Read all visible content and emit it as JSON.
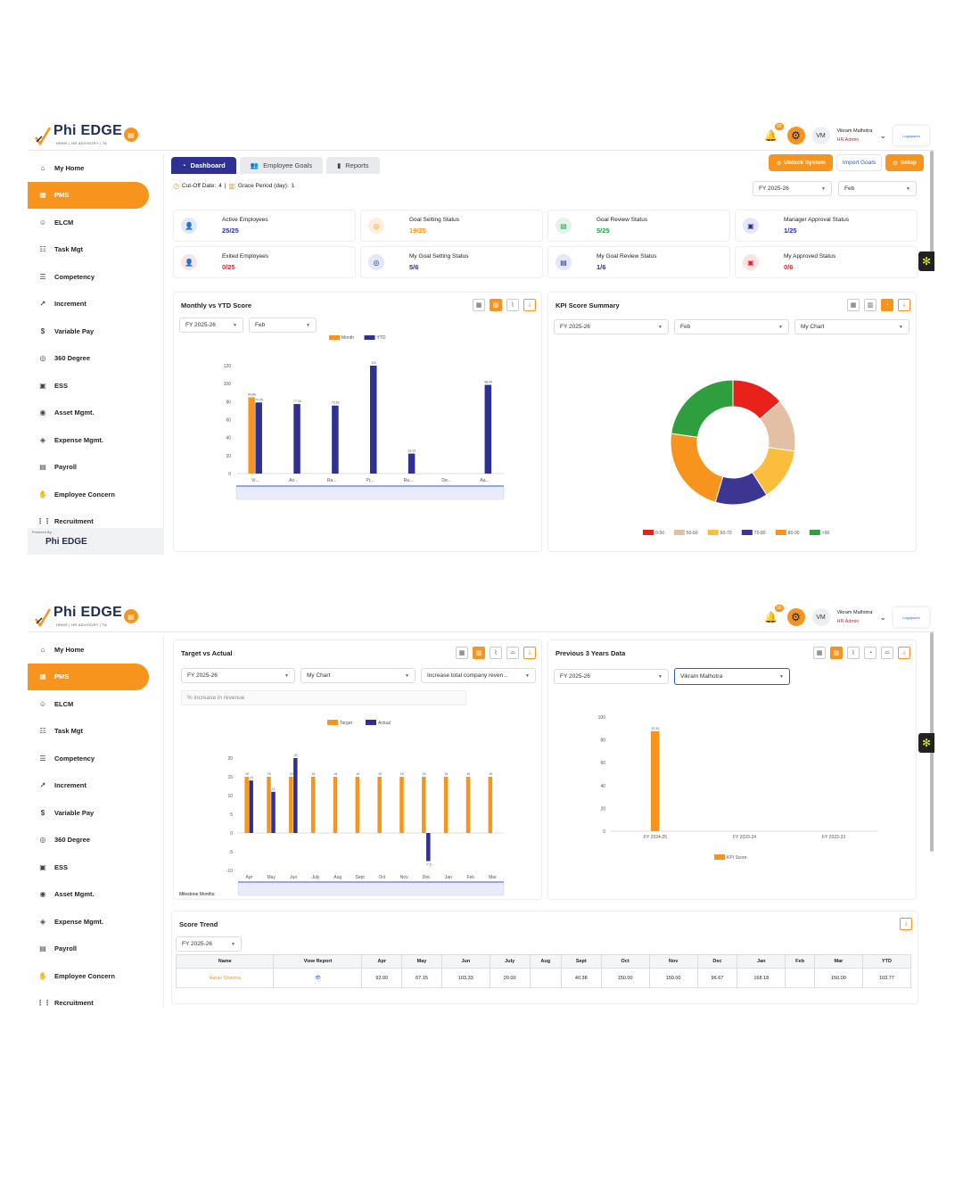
{
  "app": {
    "brand": "Phi EDGE",
    "brand_sub": "HRMS | HR ADVISORY | TA",
    "notif_count": "99",
    "user_initials": "VM",
    "user_name": "Vikram Malhotra",
    "user_role": "HR Admin",
    "partner_logo": "Logoipsum",
    "powered_by": "Powered By:"
  },
  "sidebar": {
    "items": [
      {
        "label": "My Home",
        "icon": "home-icon"
      },
      {
        "label": "PMS",
        "icon": "pms-icon"
      },
      {
        "label": "ELCM",
        "icon": "users-icon"
      },
      {
        "label": "Task Mgt",
        "icon": "task-icon"
      },
      {
        "label": "Competency",
        "icon": "list-icon"
      },
      {
        "label": "Increment",
        "icon": "trend-icon"
      },
      {
        "label": "Variable Pay",
        "icon": "dollar-icon"
      },
      {
        "label": "360 Degree",
        "icon": "360-icon"
      },
      {
        "label": "ESS",
        "icon": "clipboard-icon"
      },
      {
        "label": "Asset Mgmt.",
        "icon": "asset-icon"
      },
      {
        "label": "Expense Mgmt.",
        "icon": "expense-icon"
      },
      {
        "label": "Payroll",
        "icon": "payroll-icon"
      },
      {
        "label": "Employee Concern",
        "icon": "hand-icon"
      },
      {
        "label": "Recruitment",
        "icon": "grid-icon"
      }
    ]
  },
  "tabs": [
    "Dashboard",
    "Employee Goals",
    "Reports"
  ],
  "actions": {
    "unlock": "Unlock System",
    "import": "Import Goals",
    "setup": "Setup"
  },
  "cutoff": {
    "label": "Cut-Off Date:",
    "value": "4",
    "grace_label": "Grace Period (day):",
    "grace_value": "1"
  },
  "filters": {
    "fy": "FY 2025-26",
    "month": "Feb",
    "chart": "My Chart"
  },
  "stats": [
    {
      "label": "Active Employees",
      "value": "25/25",
      "color": "#2e3192",
      "bg": "#e3e7f7"
    },
    {
      "label": "Goal Setting Status",
      "value": "19/25",
      "color": "#f7941d",
      "bg": "#fdeedd"
    },
    {
      "label": "Goal Review Status",
      "value": "5/25",
      "color": "#2e9e4f",
      "bg": "#e2f3e7"
    },
    {
      "label": "Manager Approval Status",
      "value": "1/25",
      "color": "#2e3192",
      "bg": "#e3e7f7"
    },
    {
      "label": "Exited Employees",
      "value": "0/25",
      "color": "#e0262b",
      "bg": "#fbe3e3"
    },
    {
      "label": "My Goal Setting Status",
      "value": "5/6",
      "color": "#2e3192",
      "bg": "#e3e7f7"
    },
    {
      "label": "My Goal Review Status",
      "value": "1/6",
      "color": "#2e3192",
      "bg": "#e3e7f7"
    },
    {
      "label": "My Approved Status",
      "value": "0/6",
      "color": "#e0262b",
      "bg": "#fbe3e3"
    }
  ],
  "panels": {
    "monthly": "Monthly vs YTD Score",
    "kpi": "KPI Score Summary",
    "target": "Target vs Actual",
    "prev": "Previous 3 Years Data",
    "trend": "Score Trend",
    "target_goal_select": "Increase total company reven...",
    "target_input": "% increase in revenue",
    "milestone": "Milestone Months:",
    "prev_person": "Vikram Malhotra"
  },
  "chart_data": [
    {
      "type": "bar",
      "title": "Monthly vs YTD Score",
      "categories": [
        "Vi...",
        "An...",
        "Ra...",
        "Pr...",
        "Ra...",
        "De...",
        "Aa..."
      ],
      "series": [
        {
          "name": "Month",
          "values": [
            84.86,
            0,
            0,
            0,
            0,
            0,
            0
          ]
        },
        {
          "name": "YTD",
          "values": [
            79.05,
            77.34,
            75.63,
            120,
            22.22,
            0,
            98.64
          ]
        }
      ],
      "ylim": [
        0,
        120
      ],
      "yticks": [
        0,
        20,
        40,
        60,
        80,
        100,
        120
      ],
      "colors": [
        "#f7941d",
        "#2e3192"
      ],
      "legend": "top"
    },
    {
      "type": "pie",
      "title": "KPI Score Summary",
      "categories": [
        "0-50",
        "50-60",
        "60-70",
        "70-80",
        "80-90",
        ">90"
      ],
      "values": [
        3,
        3,
        3,
        3,
        5,
        5
      ],
      "colors": [
        "#e8221b",
        "#e3c0a4",
        "#fbbd3c",
        "#3d3592",
        "#f7941d",
        "#2e9e3f"
      ],
      "legend": "bottom"
    },
    {
      "type": "bar",
      "title": "Target vs Actual",
      "categories": [
        "Apr",
        "May",
        "Jun",
        "July",
        "Aug",
        "Sept",
        "Oct",
        "Nov",
        "Dec",
        "Jan",
        "Feb",
        "Mar"
      ],
      "series": [
        {
          "name": "Target",
          "values": [
            15,
            15,
            15,
            15,
            15,
            15,
            15,
            15,
            15,
            15,
            15,
            15
          ]
        },
        {
          "name": "Actual",
          "values": [
            14,
            11,
            20,
            0,
            0,
            0,
            0,
            0,
            -7.5,
            0,
            0,
            0
          ]
        }
      ],
      "ylim": [
        -10,
        20
      ],
      "yticks": [
        -10,
        -5,
        0,
        5,
        10,
        15,
        20
      ],
      "colors": [
        "#f7941d",
        "#2e3192"
      ],
      "legend": "top"
    },
    {
      "type": "bar",
      "title": "Previous 3 Years Data",
      "categories": [
        "FY 2024-25",
        "FY 2023-24",
        "FY 2022-23"
      ],
      "series": [
        {
          "name": "KPI Score",
          "values": [
            87.62,
            0,
            0
          ]
        }
      ],
      "ylim": [
        0,
        100
      ],
      "yticks": [
        0,
        20,
        40,
        60,
        80,
        100
      ],
      "colors": [
        "#f7941d"
      ],
      "legend": "bottom"
    },
    {
      "type": "table",
      "title": "Score Trend",
      "columns": [
        "Name",
        "View Report",
        "Apr",
        "May",
        "Jun",
        "July",
        "Aug",
        "Sept",
        "Oct",
        "Nov",
        "Dec",
        "Jan",
        "Feb",
        "Mar",
        "YTD"
      ],
      "rows": [
        [
          "Aarav Sharma",
          "",
          "92.00",
          "67.15",
          "103.33",
          "20.00",
          "",
          "40.38",
          "150.00",
          "150.00",
          "96.67",
          "168.18",
          "",
          "150.00",
          "103.77"
        ]
      ]
    }
  ]
}
